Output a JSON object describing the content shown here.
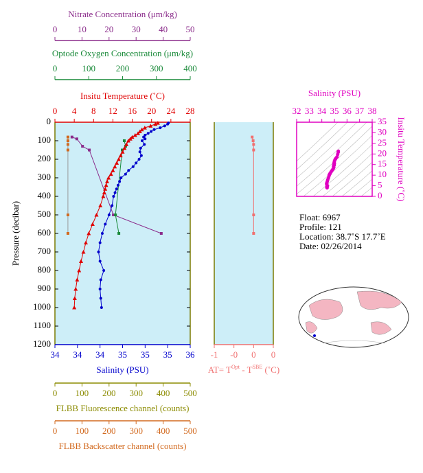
{
  "chart_data": [
    {
      "type": "profile",
      "ylabel": "Pressure (decibar)",
      "ylim": [
        0,
        1200
      ],
      "y_inverted": true,
      "yticks": [
        0,
        100,
        200,
        300,
        400,
        500,
        600,
        700,
        800,
        900,
        1000,
        1100,
        1200
      ],
      "background": "#cdeef8",
      "axes": [
        {
          "side": "top",
          "label": "Nitrate Concentration (μm/kg)",
          "color": "#8b2c8b",
          "xlim": [
            0,
            50
          ],
          "xticks": [
            0,
            10,
            20,
            30,
            40,
            50
          ],
          "series": [
            {
              "line_color": "#8b2c8b",
              "marker_color": "#8b2c8b",
              "marker": "square",
              "pressure": [
                80,
                90,
                130,
                150,
                500,
                600
              ],
              "values": [
                6.3,
                8.1,
                10.2,
                12.7,
                21.6,
                39.3
              ]
            }
          ]
        },
        {
          "side": "top",
          "label": "Optode Oxygen Concentration (μm/kg)",
          "color": "#1a8a3a",
          "xlim": [
            0,
            400
          ],
          "xticks": [
            0,
            100,
            200,
            300,
            400
          ],
          "series": [
            {
              "line_color": "#1a8a3a",
              "marker_color": "#1a8a3a",
              "marker": "square",
              "pressure": [
                100,
                130,
                150,
                500,
                600
              ],
              "values": [
                205,
                209,
                199,
                179,
                189
              ]
            }
          ]
        },
        {
          "side": "top",
          "label": "Insitu Temperature (˚C)",
          "color": "#e00000",
          "xlim": [
            0,
            28
          ],
          "xticks": [
            0,
            4,
            8,
            12,
            16,
            20,
            24,
            28
          ],
          "series": [
            {
              "line_color": "#e00000",
              "marker_color": "#e00000",
              "marker": "triangle",
              "pressure": [
                4,
                10,
                20,
                30,
                40,
                50,
                60,
                70,
                80,
                90,
                100,
                120,
                140,
                160,
                180,
                200,
                220,
                240,
                260,
                280,
                300,
                320,
                340,
                360,
                380,
                400,
                450,
                500,
                550,
                600,
                650,
                700,
                750,
                800,
                850,
                900,
                950,
                1000
              ],
              "values": [
                21.3,
                20.8,
                19.8,
                18.6,
                18,
                17.6,
                17.2,
                16.6,
                16,
                15.6,
                15.2,
                14.8,
                14.4,
                14,
                13.6,
                13.2,
                12.8,
                12.4,
                12,
                11.6,
                11.1,
                10.8,
                10.6,
                10.4,
                10.2,
                10,
                9.4,
                8.6,
                7.8,
                7.0,
                6.4,
                5.9,
                5.4,
                5.0,
                4.6,
                4.3,
                4.1,
                4.0
              ]
            }
          ]
        },
        {
          "side": "bottom",
          "label": "Salinity (PSU)",
          "color": "#0000cc",
          "xlim": [
            33.8,
            35.6
          ],
          "xticks": [
            {
              "value": 33.8,
              "label": "34"
            },
            {
              "value": 34.1,
              "label": "34"
            },
            {
              "value": 34.4,
              "label": "34"
            },
            {
              "value": 34.7,
              "label": "35"
            },
            {
              "value": 35.0,
              "label": "35"
            },
            {
              "value": 35.3,
              "label": "35"
            },
            {
              "value": 35.6,
              "label": "36"
            }
          ],
          "series": [
            {
              "line_color": "#0000cc",
              "marker_color": "#0000cc",
              "marker": "circle",
              "pressure": [
                4,
                10,
                20,
                30,
                40,
                50,
                60,
                70,
                80,
                90,
                100,
                120,
                140,
                160,
                180,
                200,
                220,
                240,
                260,
                280,
                300,
                320,
                340,
                360,
                380,
                400,
                450,
                500,
                550,
                600,
                650,
                700,
                750,
                800,
                850,
                900,
                950,
                1000
              ],
              "values": [
                35.31,
                35.3,
                35.26,
                35.2,
                35.12,
                35.08,
                35.04,
                35.0,
                34.98,
                35.0,
                34.96,
                34.99,
                34.94,
                34.93,
                34.95,
                34.92,
                34.88,
                34.84,
                34.78,
                34.74,
                34.68,
                34.66,
                34.64,
                34.62,
                34.6,
                34.58,
                34.56,
                34.52,
                34.47,
                34.43,
                34.4,
                34.38,
                34.4,
                34.45,
                34.41,
                34.4,
                34.41,
                34.42
              ]
            }
          ]
        },
        {
          "side": "bottom",
          "label": "FLBB Fluorescence channel (counts)",
          "color": "#8b8b00",
          "xlim": [
            0,
            500
          ],
          "xticks": [
            0,
            100,
            200,
            300,
            400,
            500
          ],
          "series": []
        },
        {
          "side": "bottom",
          "label": "FLBB Backscatter channel (counts)",
          "color": "#d2691e",
          "xlim": [
            0,
            500
          ],
          "xticks": [
            0,
            100,
            200,
            300,
            400,
            500
          ],
          "series": [
            {
              "line_color": "#999999",
              "marker_color": "#d2691e",
              "marker": "square",
              "pressure": [
                80,
                100,
                120,
                150,
                500,
                600
              ],
              "values": [
                48,
                48,
                48,
                48,
                48,
                48
              ]
            }
          ]
        }
      ]
    },
    {
      "type": "profile",
      "ylim": [
        0,
        1200
      ],
      "y_inverted": true,
      "background": "#cdeef8",
      "axes": [
        {
          "side": "bottom",
          "label": [
            "AT= T",
            "Opt",
            " - T",
            "SBE",
            " (˚C)"
          ],
          "color": "#f07070",
          "xlim": [
            -0.8,
            0.4
          ],
          "xticks": [
            {
              "value": -0.8,
              "label": "-1"
            },
            {
              "value": -0.4,
              "label": "-0"
            },
            0,
            {
              "value": 0.4,
              "label": "0"
            }
          ],
          "series": [
            {
              "line_color": "#f07070",
              "marker_color": "#f07070",
              "marker": "square",
              "pressure": [
                80,
                100,
                120,
                150,
                500,
                600
              ],
              "values": [
                -0.03,
                -0.01,
                0,
                0,
                0,
                0
              ]
            }
          ]
        }
      ]
    },
    {
      "type": "ts",
      "xlabel": "Salinity (PSU)",
      "ylabel": "Insitu Temperature (˚C)",
      "color": "#e000c0",
      "xlim": [
        32,
        38
      ],
      "xticks": [
        32,
        33,
        34,
        35,
        36,
        37,
        38
      ],
      "ylim": [
        0,
        35
      ],
      "yticks": [
        0,
        5,
        10,
        15,
        20,
        25,
        30,
        35
      ]
    }
  ],
  "info": {
    "lines": [
      "Float:  6967",
      "Profile:  121",
      "Location:  38.7˚S  17.7˚E",
      "Date:  02/26/2014"
    ]
  }
}
